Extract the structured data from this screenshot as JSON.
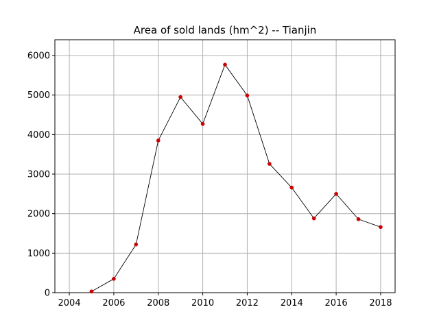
{
  "chart_data": {
    "type": "line",
    "title": "Area of sold lands (hm^2) -- Tianjin",
    "xlabel": "",
    "ylabel": "",
    "xlim": [
      2003.35,
      2018.65
    ],
    "ylim": [
      0,
      6400
    ],
    "x_ticks": [
      2004,
      2006,
      2008,
      2010,
      2012,
      2014,
      2016,
      2018
    ],
    "y_ticks": [
      0,
      1000,
      2000,
      3000,
      4000,
      5000,
      6000
    ],
    "grid": true,
    "series": [
      {
        "x": [
          2005,
          2006,
          2007,
          2008,
          2009,
          2010,
          2011,
          2012,
          2013,
          2014,
          2015,
          2016,
          2017,
          2018
        ],
        "y": [
          30,
          350,
          1220,
          3850,
          4950,
          4270,
          5770,
          4990,
          3260,
          2660,
          1880,
          2500,
          1860,
          1660
        ],
        "line_color": "#000000",
        "marker_color": "#cc0000"
      }
    ]
  }
}
